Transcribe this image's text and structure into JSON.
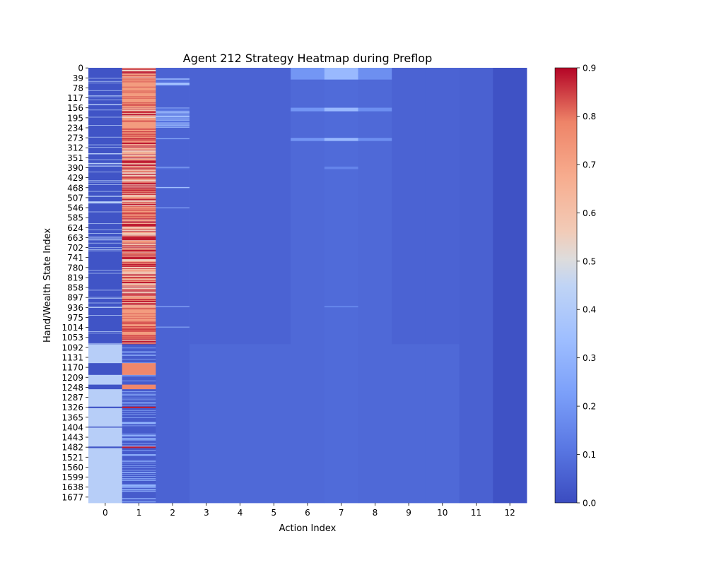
{
  "chart_data": {
    "type": "heatmap",
    "title": "Agent 212 Strategy Heatmap during Preflop",
    "xlabel": "Action Index",
    "ylabel": "Hand/Wealth State Index",
    "colormap": "coolwarm",
    "x_ticks": [
      "0",
      "1",
      "2",
      "3",
      "4",
      "5",
      "6",
      "7",
      "8",
      "9",
      "10",
      "11",
      "12"
    ],
    "y_ticks": [
      "0",
      "39",
      "78",
      "117",
      "156",
      "195",
      "234",
      "273",
      "312",
      "351",
      "390",
      "429",
      "468",
      "507",
      "546",
      "585",
      "624",
      "663",
      "702",
      "741",
      "780",
      "819",
      "858",
      "897",
      "936",
      "975",
      "1014",
      "1053",
      "1092",
      "1131",
      "1170",
      "1209",
      "1248",
      "1287",
      "1326",
      "1365",
      "1404",
      "1443",
      "1482",
      "1521",
      "1560",
      "1599",
      "1638",
      "1677"
    ],
    "n_rows": 1700,
    "n_cols": 13,
    "colorbar": {
      "min": 0.0,
      "max": 0.9,
      "ticks": [
        "0.0",
        "0.1",
        "0.2",
        "0.3",
        "0.4",
        "0.5",
        "0.6",
        "0.7",
        "0.8",
        "0.9"
      ]
    },
    "approx_column_values": {
      "0": "mostly 0.0-0.05 for rows 0-1080 with scattered 0.4-0.45 rows; mostly ~0.42 for rows 1080-1700 with a few 0.0 bands",
      "1": "mixed 0.5-0.9 for rows 0-1080 (blocks ~0.7 near rows 39-156, 195-273, 546-585, 936-1053); mostly ~0.05 with light stripes for rows 1080-1700",
      "2": "~0.05 with light stripes near rows 39-78, 156-234, 273, 390, 468, 546, 936, 1014",
      "3": "~0.05",
      "4": "~0.05",
      "5": "~0.05",
      "6": "~0.05-0.25 in top rows, ~0.07 elsewhere",
      "7": "~0.15-0.35 in top rows, ~0.07 elsewhere",
      "8": "~0.1-0.2 in top rows, ~0.07 elsewhere",
      "9": "~0.07",
      "10": "~0.07",
      "11": "~0.05",
      "12": "~0.01"
    }
  }
}
